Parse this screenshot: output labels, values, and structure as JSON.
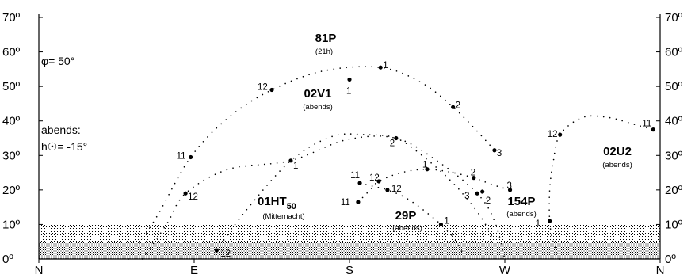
{
  "info": {
    "latitude": "φ= 50°",
    "evening_label": "abends:",
    "sun_altitude": "h☉= -15°"
  },
  "chart_data": {
    "type": "scatter",
    "xlabel": "",
    "ylabel": "",
    "x_direction_ticks": [
      "N",
      "E",
      "S",
      "W",
      "N"
    ],
    "x_direction_azimuths": [
      0,
      90,
      180,
      270,
      360
    ],
    "xlim": [
      0,
      360
    ],
    "ylim": [
      0,
      70
    ],
    "y_ticks": [
      0,
      10,
      20,
      30,
      40,
      50,
      60,
      70
    ],
    "y_tick_labels": [
      "0º",
      "10º",
      "20º",
      "30º",
      "40º",
      "50º",
      "60º",
      "70º"
    ],
    "horizon_bands": [
      {
        "from": 0,
        "to": 5,
        "shade": "dark"
      },
      {
        "from": 5,
        "to": 10,
        "shade": "light"
      }
    ],
    "series": [
      {
        "name": "81P",
        "note": "(21h)",
        "hours": [
          {
            "label": "11",
            "azimuth": 88,
            "altitude": 29.5
          },
          {
            "label": "12",
            "azimuth": 135,
            "altitude": 49
          },
          {
            "label": "1",
            "azimuth": 198,
            "altitude": 55.5
          },
          {
            "label": "2",
            "azimuth": 240,
            "altitude": 44
          },
          {
            "label": "3",
            "azimuth": 264,
            "altitude": 31.5
          }
        ]
      },
      {
        "name": "02V1",
        "note": "(abends)",
        "hours": [
          {
            "label": "12",
            "azimuth": 85,
            "altitude": 19
          },
          {
            "label": "1",
            "azimuth": 146,
            "altitude": 28.5
          },
          {
            "label": "2",
            "azimuth": 207,
            "altitude": 35
          },
          {
            "label": "3",
            "azimuth": 254,
            "altitude": 19
          }
        ]
      },
      {
        "name": "01HT50",
        "name_main": "01HT",
        "name_sub": "50",
        "note": "(Mitternacht)",
        "hours": [
          {
            "label": "1",
            "azimuth": 180,
            "altitude": 52
          },
          {
            "label": "12",
            "azimuth": 103,
            "altitude": 2.5
          }
        ]
      },
      {
        "name": "154P",
        "note": "(abends)",
        "hours": [
          {
            "label": "11",
            "azimuth": 185,
            "altitude": 16.5
          },
          {
            "label": "12",
            "azimuth": 197,
            "altitude": 22.5
          },
          {
            "label": "1",
            "azimuth": 225,
            "altitude": 26
          },
          {
            "label": "2",
            "azimuth": 252,
            "altitude": 23.5
          },
          {
            "label": "3",
            "azimuth": 273,
            "altitude": 20
          }
        ]
      },
      {
        "name": "29P",
        "note": "(abends)",
        "hours": [
          {
            "label": "11",
            "azimuth": 186,
            "altitude": 22
          },
          {
            "label": "12",
            "azimuth": 202,
            "altitude": 20
          },
          {
            "label": "1",
            "azimuth": 233,
            "altitude": 10
          },
          {
            "label": "2",
            "azimuth": 257,
            "altitude": 19.5
          }
        ]
      },
      {
        "name": "02U2",
        "note": "(abends)",
        "hours": [
          {
            "label": "1",
            "azimuth": 296,
            "altitude": 11
          },
          {
            "label": "12",
            "azimuth": 302,
            "altitude": 36
          },
          {
            "label": "11",
            "azimuth": 356,
            "altitude": 37.5
          }
        ]
      }
    ]
  }
}
